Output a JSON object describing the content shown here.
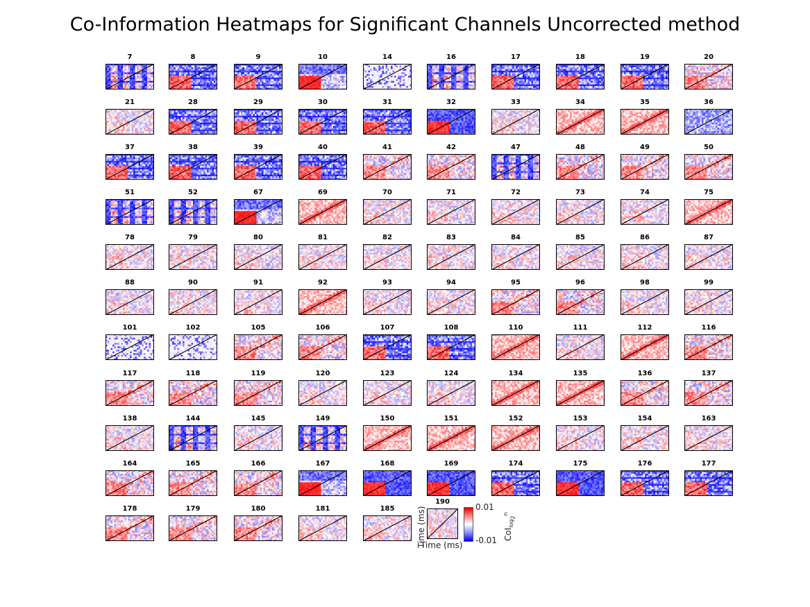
{
  "title": "Co-Information Heatmaps for Significant Channels Uncorrected method",
  "chart_data": {
    "type": "heatmap",
    "title": "Co-Information Heatmaps for Significant Channels Uncorrected method",
    "panels": [
      {
        "name": "7",
        "pattern": "blue_mixed"
      },
      {
        "name": "8",
        "pattern": "red_block_blue"
      },
      {
        "name": "9",
        "pattern": "red_block_blue"
      },
      {
        "name": "10",
        "pattern": "red_solid"
      },
      {
        "name": "14",
        "pattern": "sparse_blue"
      },
      {
        "name": "16",
        "pattern": "blue_mixed"
      },
      {
        "name": "17",
        "pattern": "red_block_blue"
      },
      {
        "name": "18",
        "pattern": "red_block_blue"
      },
      {
        "name": "19",
        "pattern": "red_block_blue"
      },
      {
        "name": "20",
        "pattern": "red_block_mixed"
      },
      {
        "name": "21",
        "pattern": "light_mixed"
      },
      {
        "name": "28",
        "pattern": "red_block_blue"
      },
      {
        "name": "29",
        "pattern": "red_block_blue"
      },
      {
        "name": "30",
        "pattern": "red_block_blue"
      },
      {
        "name": "31",
        "pattern": "red_block_blue"
      },
      {
        "name": "32",
        "pattern": "red_solid_blue"
      },
      {
        "name": "33",
        "pattern": "light_mixed"
      },
      {
        "name": "34",
        "pattern": "pink_diag"
      },
      {
        "name": "35",
        "pattern": "pink_diag"
      },
      {
        "name": "36",
        "pattern": "lavender"
      },
      {
        "name": "37",
        "pattern": "red_block_blue"
      },
      {
        "name": "38",
        "pattern": "red_block_blue"
      },
      {
        "name": "39",
        "pattern": "red_block_blue"
      },
      {
        "name": "40",
        "pattern": "red_block_blue"
      },
      {
        "name": "41",
        "pattern": "red_block_mixed"
      },
      {
        "name": "42",
        "pattern": "red_block_mixed"
      },
      {
        "name": "47",
        "pattern": "blue_mixed"
      },
      {
        "name": "48",
        "pattern": "red_block_mixed"
      },
      {
        "name": "49",
        "pattern": "red_block_mixed"
      },
      {
        "name": "50",
        "pattern": "red_block_mixed"
      },
      {
        "name": "51",
        "pattern": "blue_mixed"
      },
      {
        "name": "52",
        "pattern": "blue_mixed"
      },
      {
        "name": "67",
        "pattern": "red_solid"
      },
      {
        "name": "69",
        "pattern": "pink_diag"
      },
      {
        "name": "70",
        "pattern": "light_mixed"
      },
      {
        "name": "71",
        "pattern": "light_mixed"
      },
      {
        "name": "72",
        "pattern": "light_mixed"
      },
      {
        "name": "73",
        "pattern": "light_mixed"
      },
      {
        "name": "74",
        "pattern": "light_mixed"
      },
      {
        "name": "75",
        "pattern": "pink_diag"
      },
      {
        "name": "78",
        "pattern": "light_mixed"
      },
      {
        "name": "79",
        "pattern": "light_mixed"
      },
      {
        "name": "80",
        "pattern": "light_mixed"
      },
      {
        "name": "81",
        "pattern": "light_mixed"
      },
      {
        "name": "82",
        "pattern": "light_mixed"
      },
      {
        "name": "83",
        "pattern": "light_mixed"
      },
      {
        "name": "84",
        "pattern": "light_mixed"
      },
      {
        "name": "85",
        "pattern": "light_mixed"
      },
      {
        "name": "86",
        "pattern": "light_mixed"
      },
      {
        "name": "87",
        "pattern": "light_mixed"
      },
      {
        "name": "88",
        "pattern": "light_mixed"
      },
      {
        "name": "90",
        "pattern": "light_mixed"
      },
      {
        "name": "91",
        "pattern": "light_mixed"
      },
      {
        "name": "92",
        "pattern": "pink_diag"
      },
      {
        "name": "93",
        "pattern": "light_mixed"
      },
      {
        "name": "94",
        "pattern": "light_mixed"
      },
      {
        "name": "95",
        "pattern": "red_block_mixed"
      },
      {
        "name": "96",
        "pattern": "red_block_mixed"
      },
      {
        "name": "98",
        "pattern": "light_mixed"
      },
      {
        "name": "99",
        "pattern": "light_mixed"
      },
      {
        "name": "101",
        "pattern": "sparse_blue"
      },
      {
        "name": "102",
        "pattern": "sparse_blue"
      },
      {
        "name": "105",
        "pattern": "red_block_mixed"
      },
      {
        "name": "106",
        "pattern": "red_block_mixed"
      },
      {
        "name": "107",
        "pattern": "red_block_blue"
      },
      {
        "name": "108",
        "pattern": "red_block_blue"
      },
      {
        "name": "110",
        "pattern": "pink_diag"
      },
      {
        "name": "111",
        "pattern": "light_mixed"
      },
      {
        "name": "112",
        "pattern": "pink_diag"
      },
      {
        "name": "116",
        "pattern": "red_block_mixed"
      },
      {
        "name": "117",
        "pattern": "red_block_mixed"
      },
      {
        "name": "118",
        "pattern": "red_block_mixed"
      },
      {
        "name": "119",
        "pattern": "red_block_mixed"
      },
      {
        "name": "120",
        "pattern": "light_mixed"
      },
      {
        "name": "123",
        "pattern": "light_mixed"
      },
      {
        "name": "124",
        "pattern": "light_mixed"
      },
      {
        "name": "134",
        "pattern": "pink_diag"
      },
      {
        "name": "135",
        "pattern": "pink_diag"
      },
      {
        "name": "136",
        "pattern": "red_block_mixed"
      },
      {
        "name": "137",
        "pattern": "red_block_mixed"
      },
      {
        "name": "138",
        "pattern": "light_mixed"
      },
      {
        "name": "144",
        "pattern": "blue_mixed"
      },
      {
        "name": "145",
        "pattern": "light_mixed"
      },
      {
        "name": "149",
        "pattern": "blue_mixed"
      },
      {
        "name": "150",
        "pattern": "pink_diag"
      },
      {
        "name": "151",
        "pattern": "pink_diag"
      },
      {
        "name": "152",
        "pattern": "pink_diag"
      },
      {
        "name": "153",
        "pattern": "light_mixed"
      },
      {
        "name": "154",
        "pattern": "light_mixed"
      },
      {
        "name": "163",
        "pattern": "light_mixed"
      },
      {
        "name": "164",
        "pattern": "red_block_mixed"
      },
      {
        "name": "165",
        "pattern": "red_block_mixed"
      },
      {
        "name": "166",
        "pattern": "red_block_mixed"
      },
      {
        "name": "167",
        "pattern": "red_solid"
      },
      {
        "name": "168",
        "pattern": "red_solid_blue"
      },
      {
        "name": "169",
        "pattern": "red_solid_blue"
      },
      {
        "name": "174",
        "pattern": "red_block_blue"
      },
      {
        "name": "175",
        "pattern": "red_solid_blue"
      },
      {
        "name": "176",
        "pattern": "red_block_blue"
      },
      {
        "name": "177",
        "pattern": "red_block_blue"
      },
      {
        "name": "178",
        "pattern": "red_block_mixed"
      },
      {
        "name": "179",
        "pattern": "red_block_mixed"
      },
      {
        "name": "180",
        "pattern": "red_block_mixed"
      },
      {
        "name": "181",
        "pattern": "light_mixed"
      },
      {
        "name": "185",
        "pattern": "light_mixed"
      },
      {
        "name": "190",
        "pattern": "light_mixed"
      }
    ],
    "xlabel": "Time (ms)",
    "ylabel": "Time (ms)",
    "colorbar": {
      "max_label": "0.01",
      "min_label": "-0.01",
      "range": [
        -0.01,
        0.01
      ],
      "label_main": "CoI",
      "label_sub": "log",
      "label_sub2": "2",
      "label_sup": "n",
      "colors": {
        "positive": "#e60000",
        "zero": "#ffffff",
        "negative": "#0000e6"
      }
    },
    "legend": "colorbar-right-of-last-panel",
    "grid": false
  }
}
